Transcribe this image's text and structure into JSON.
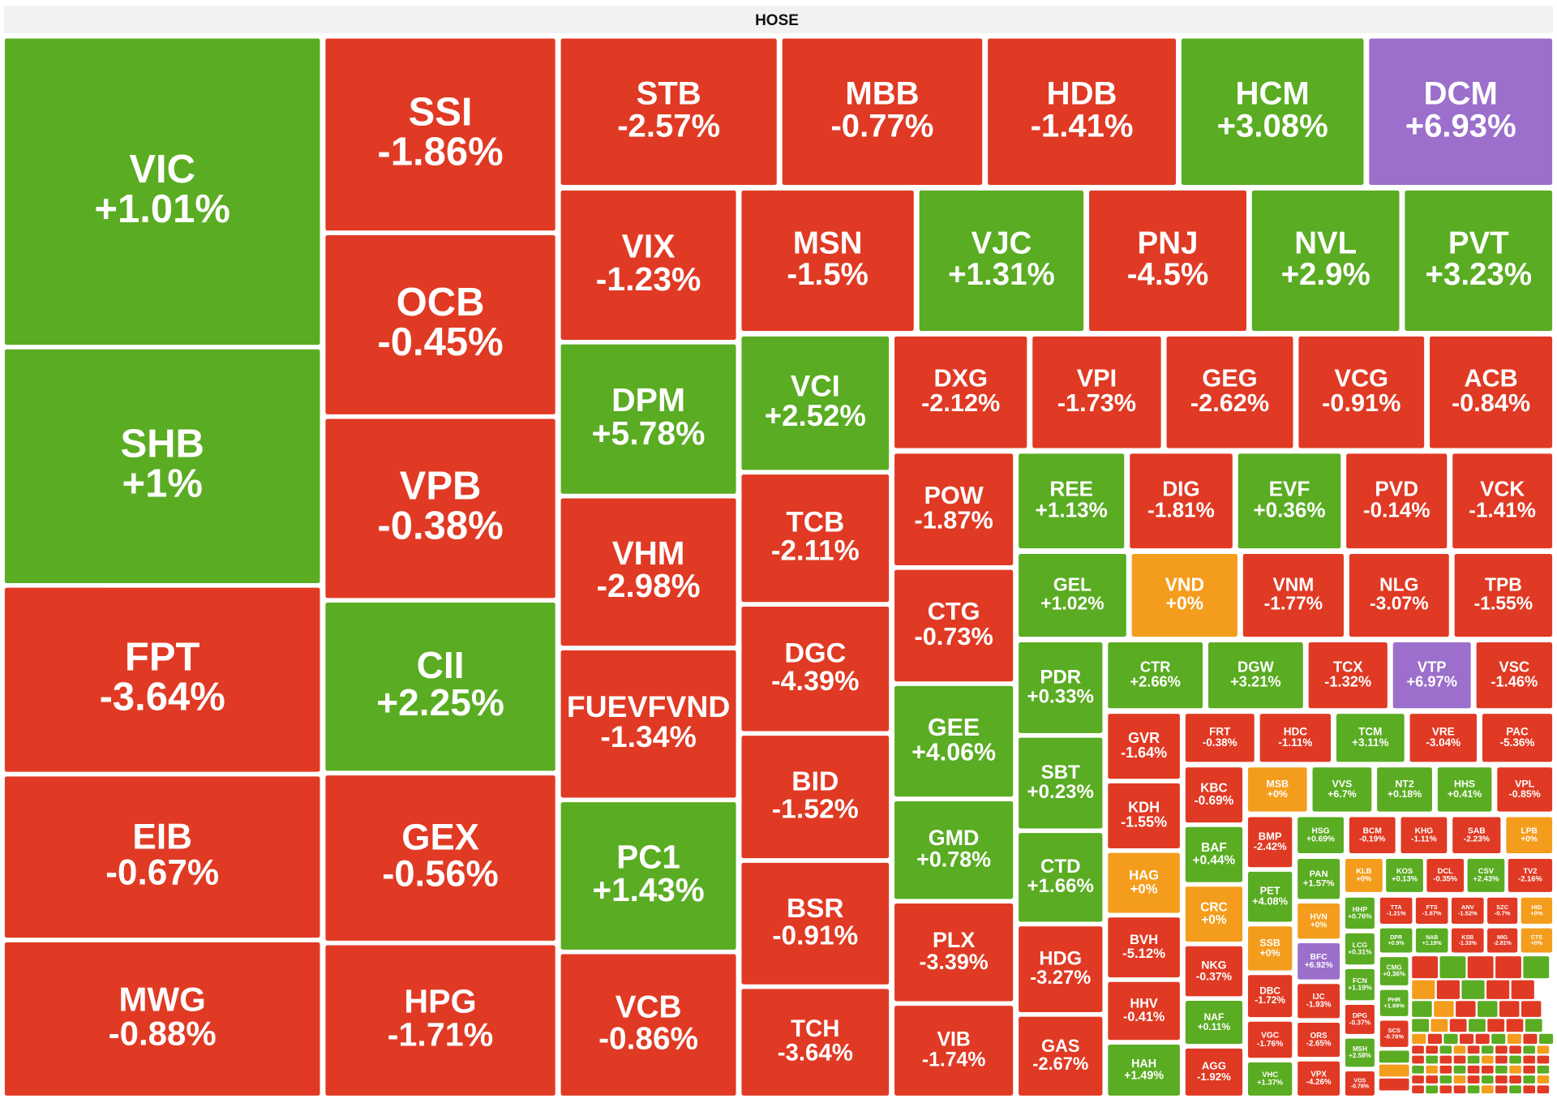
{
  "chart_data": {
    "type": "treemap",
    "title": "HOSE",
    "categories": [
      "VIC",
      "SHB",
      "FPT",
      "EIB",
      "MWG",
      "SSI",
      "OCB",
      "VPB",
      "CII",
      "GEX",
      "HPG",
      "STB",
      "MBB",
      "HDB",
      "HCM",
      "DCM",
      "VIX",
      "MSN",
      "VJC",
      "PNJ",
      "NVL",
      "PVT",
      "DPM",
      "VHM",
      "FUEVFVND",
      "PC1",
      "VCB",
      "VCI",
      "TCB",
      "DGC",
      "BID",
      "BSR",
      "TCH",
      "DXG",
      "VPI",
      "GEG",
      "VCG",
      "ACB",
      "POW",
      "CTG",
      "GEE",
      "GMD",
      "PLX",
      "VIB",
      "REE",
      "DIG",
      "EVF",
      "PVD",
      "VCK",
      "GEL",
      "VND",
      "VNM",
      "NLG",
      "TPB",
      "PDR",
      "SBT",
      "CTD",
      "HDG",
      "GAS",
      "CTR",
      "DGW",
      "TCX",
      "VTP",
      "VSC",
      "GVR",
      "KDH",
      "HAG",
      "BVH",
      "HHV",
      "HAH",
      "FRT",
      "HDC",
      "TCM",
      "VRE",
      "PAC",
      "KBC",
      "BAF",
      "CRC",
      "NKG",
      "NAF",
      "AGG",
      "MSB",
      "VVS",
      "NT2",
      "HHS",
      "VPL",
      "BMP",
      "PET",
      "SSB",
      "DBC",
      "VGC",
      "VHC",
      "HSG",
      "BCM",
      "KHG",
      "SAB",
      "LPB",
      "PAN",
      "HVN",
      "BFC",
      "IJC",
      "ORS",
      "VPX",
      "KLB",
      "KOS",
      "DCL",
      "CSV",
      "TV2",
      "HHP",
      "LCG",
      "FCN",
      "DPG",
      "MSH",
      "VOS",
      "TTA",
      "FTS",
      "ANV",
      "SZC",
      "HID",
      "DPR",
      "NAB",
      "KSB",
      "MIG",
      "CTS",
      "CMG",
      "PHR",
      "SCS"
    ],
    "values": [
      1.01,
      1,
      -3.64,
      -0.67,
      -0.88,
      -1.86,
      -0.45,
      -0.38,
      2.25,
      -0.56,
      -1.71,
      -2.57,
      -0.77,
      -1.41,
      3.08,
      6.93,
      -1.23,
      -1.5,
      1.31,
      -4.5,
      2.9,
      3.23,
      5.78,
      -2.98,
      -1.34,
      1.43,
      -0.86,
      2.52,
      -2.11,
      -4.39,
      -1.52,
      -0.91,
      -3.64,
      -2.12,
      -1.73,
      -2.62,
      -0.91,
      -0.84,
      -1.87,
      -0.73,
      4.06,
      0.78,
      -3.39,
      -1.74,
      1.13,
      -1.81,
      0.36,
      -0.14,
      -1.41,
      1.02,
      0,
      -1.77,
      -3.07,
      -1.55,
      0.33,
      0.23,
      1.66,
      -3.27,
      -2.67,
      2.66,
      3.21,
      -1.32,
      6.97,
      -1.46,
      -1.64,
      -1.55,
      0,
      -5.12,
      -0.41,
      1.49,
      -0.38,
      -1.11,
      3.11,
      -3.04,
      -5.36,
      -0.69,
      0.44,
      0,
      -0.37,
      0.11,
      -1.92,
      0,
      6.7,
      0.18,
      0.41,
      -0.85,
      -2.42,
      4.08,
      0,
      -1.72,
      -1.76,
      1.37,
      0.69,
      -0.19,
      -1.11,
      -2.23,
      0,
      1.57,
      0,
      6.92,
      -1.93,
      -2.65,
      -4.26,
      0,
      0.13,
      -0.35,
      2.43,
      -2.16,
      0.76,
      0.31,
      1.19,
      -0.37,
      2.58,
      -0.78,
      -1.21,
      -1.87,
      -1.52,
      -0.7,
      0,
      0.9,
      1.19,
      -1.33,
      -2.81,
      0,
      0.36,
      1.69,
      -0.76
    ],
    "value_labels": [
      "+1.01%",
      "+1%",
      "-3.64%",
      "-0.67%",
      "-0.88%",
      "-1.86%",
      "-0.45%",
      "-0.38%",
      "+2.25%",
      "-0.56%",
      "-1.71%",
      "-2.57%",
      "-0.77%",
      "-1.41%",
      "+3.08%",
      "+6.93%",
      "-1.23%",
      "-1.5%",
      "+1.31%",
      "-4.5%",
      "+2.9%",
      "+3.23%",
      "+5.78%",
      "-2.98%",
      "-1.34%",
      "+1.43%",
      "-0.86%",
      "+2.52%",
      "-2.11%",
      "-4.39%",
      "-1.52%",
      "-0.91%",
      "-3.64%",
      "-2.12%",
      "-1.73%",
      "-2.62%",
      "-0.91%",
      "-0.84%",
      "-1.87%",
      "-0.73%",
      "+4.06%",
      "+0.78%",
      "-3.39%",
      "-1.74%",
      "+1.13%",
      "-1.81%",
      "+0.36%",
      "-0.14%",
      "-1.41%",
      "+1.02%",
      "+0%",
      "-1.77%",
      "-3.07%",
      "-1.55%",
      "+0.33%",
      "+0.23%",
      "+1.66%",
      "-3.27%",
      "-2.67%",
      "+2.66%",
      "+3.21%",
      "-1.32%",
      "+6.97%",
      "-1.46%",
      "-1.64%",
      "-1.55%",
      "+0%",
      "-5.12%",
      "-0.41%",
      "+1.49%",
      "-0.38%",
      "-1.11%",
      "+3.11%",
      "-3.04%",
      "-5.36%",
      "-0.69%",
      "+0.44%",
      "+0%",
      "-0.37%",
      "+0.11%",
      "-1.92%",
      "+0%",
      "+6.7%",
      "+0.18%",
      "+0.41%",
      "-0.85%",
      "-2.42%",
      "+4.08%",
      "+0%",
      "-1.72%",
      "-1.76%",
      "+1.37%",
      "+0.69%",
      "-0.19%",
      "-1.11%",
      "-2.23%",
      "+0%",
      "+1.57%",
      "+0%",
      "+6.92%",
      "-1.93%",
      "-2.65%",
      "-4.26%",
      "+0%",
      "+0.13%",
      "-0.35%",
      "+2.43%",
      "-2.16%",
      "+0.76%",
      "+0.31%",
      "+1.19%",
      "-0.37%",
      "+2.58%",
      "-0.78%",
      "-1.21%",
      "-1.87%",
      "-1.52%",
      "-0.7%",
      "+0%",
      "+0.9%",
      "+1.19%",
      "-1.33%",
      "-2.81%",
      "+0%",
      "+0.36%",
      "+1.69%",
      "-0.76%"
    ],
    "colors": [
      "#5aac22",
      "#5aac22",
      "#e03a24",
      "#e03a24",
      "#e03a24",
      "#e03a24",
      "#e03a24",
      "#e03a24",
      "#5aac22",
      "#e03a24",
      "#e03a24",
      "#e03a24",
      "#e03a24",
      "#e03a24",
      "#5aac22",
      "#9b6fcb",
      "#e03a24",
      "#e03a24",
      "#5aac22",
      "#e03a24",
      "#5aac22",
      "#5aac22",
      "#5aac22",
      "#e03a24",
      "#e03a24",
      "#5aac22",
      "#e03a24",
      "#5aac22",
      "#e03a24",
      "#e03a24",
      "#e03a24",
      "#e03a24",
      "#e03a24",
      "#e03a24",
      "#e03a24",
      "#e03a24",
      "#e03a24",
      "#e03a24",
      "#e03a24",
      "#e03a24",
      "#5aac22",
      "#5aac22",
      "#e03a24",
      "#e03a24",
      "#5aac22",
      "#e03a24",
      "#5aac22",
      "#e03a24",
      "#e03a24",
      "#5aac22",
      "#f49d1d",
      "#e03a24",
      "#e03a24",
      "#e03a24",
      "#5aac22",
      "#5aac22",
      "#5aac22",
      "#e03a24",
      "#e03a24",
      "#5aac22",
      "#5aac22",
      "#e03a24",
      "#9b6fcb",
      "#e03a24",
      "#e03a24",
      "#e03a24",
      "#f49d1d",
      "#e03a24",
      "#e03a24",
      "#5aac22",
      "#e03a24",
      "#e03a24",
      "#5aac22",
      "#e03a24",
      "#e03a24",
      "#e03a24",
      "#5aac22",
      "#f49d1d",
      "#e03a24",
      "#5aac22",
      "#e03a24",
      "#f49d1d",
      "#5aac22",
      "#5aac22",
      "#5aac22",
      "#e03a24",
      "#e03a24",
      "#5aac22",
      "#f49d1d",
      "#e03a24",
      "#e03a24",
      "#5aac22",
      "#5aac22",
      "#e03a24",
      "#e03a24",
      "#e03a24",
      "#f49d1d",
      "#5aac22",
      "#f49d1d",
      "#9b6fcb",
      "#e03a24",
      "#e03a24",
      "#e03a24",
      "#f49d1d",
      "#5aac22",
      "#e03a24",
      "#5aac22",
      "#e03a24",
      "#5aac22",
      "#5aac22",
      "#5aac22",
      "#e03a24",
      "#5aac22",
      "#e03a24",
      "#e03a24",
      "#e03a24",
      "#e03a24",
      "#e03a24",
      "#f49d1d",
      "#5aac22",
      "#5aac22",
      "#e03a24",
      "#e03a24",
      "#f49d1d",
      "#5aac22",
      "#5aac22",
      "#e03a24"
    ]
  }
}
